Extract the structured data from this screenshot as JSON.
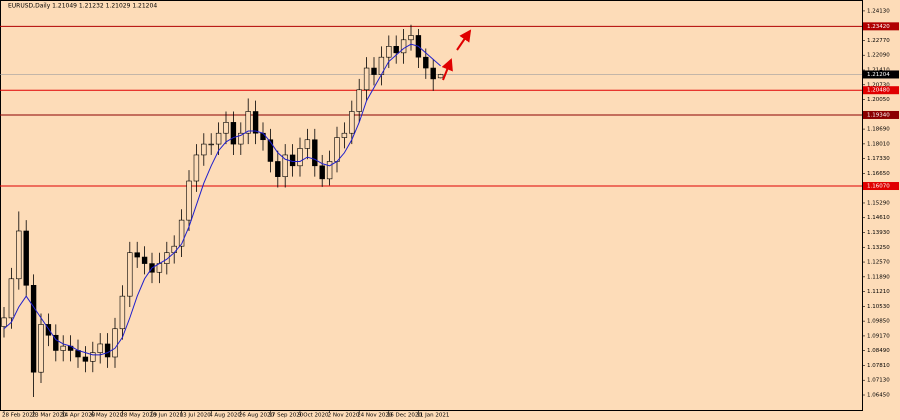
{
  "chart_data": {
    "type": "candlestick",
    "title": "EURUSD,Daily  1.21049 1.21232 1.21029 1.21204",
    "categories": [
      "28 Feb 2020",
      null,
      null,
      null,
      "23 Mar 2020",
      null,
      null,
      null,
      "14 Apr 2020",
      null,
      null,
      null,
      "6 May 2020",
      null,
      null,
      null,
      "28 May 2020",
      null,
      null,
      null,
      "19 Jun 2020",
      null,
      null,
      null,
      "13 Jul 2020",
      null,
      null,
      null,
      "4 Aug 2020",
      null,
      null,
      null,
      "26 Aug 2020",
      null,
      null,
      null,
      "17 Sep 2020",
      null,
      null,
      null,
      "9 Oct 2020",
      null,
      null,
      null,
      "2 Nov 2020",
      null,
      null,
      null,
      "24 Nov 2020",
      null,
      null,
      null,
      "16 Dec 2020",
      null,
      null,
      null,
      "11 Jan 2021",
      null,
      null,
      null
    ],
    "open": [
      1.096,
      1.1,
      1.118,
      1.14,
      1.115,
      1.075,
      1.097,
      1.092,
      1.085,
      1.087,
      1.085,
      1.082,
      1.08,
      1.084,
      1.088,
      1.082,
      1.095,
      1.11,
      1.13,
      1.128,
      1.125,
      1.121,
      1.125,
      1.13,
      1.133,
      1.145,
      1.163,
      1.175,
      1.18,
      1.18,
      1.185,
      1.19,
      1.18,
      1.185,
      1.195,
      1.185,
      1.182,
      1.172,
      1.165,
      1.175,
      1.17,
      1.178,
      1.182,
      1.17,
      1.164,
      1.172,
      1.183,
      1.185,
      1.195,
      1.205,
      1.215,
      1.212,
      1.22,
      1.225,
      1.222,
      1.228,
      1.23,
      1.22,
      1.215,
      1.21049
    ],
    "high": [
      1.105,
      1.123,
      1.149,
      1.145,
      1.12,
      1.102,
      1.102,
      1.097,
      1.092,
      1.092,
      1.09,
      1.087,
      1.089,
      1.093,
      1.093,
      1.1,
      1.115,
      1.135,
      1.135,
      1.133,
      1.13,
      1.13,
      1.135,
      1.138,
      1.15,
      1.168,
      1.18,
      1.185,
      1.185,
      1.19,
      1.195,
      1.195,
      1.19,
      1.201,
      1.2,
      1.19,
      1.187,
      1.177,
      1.18,
      1.18,
      1.183,
      1.187,
      1.187,
      1.175,
      1.177,
      1.188,
      1.19,
      1.2,
      1.21,
      1.22,
      1.22,
      1.225,
      1.23,
      1.23,
      1.233,
      1.2349,
      1.233,
      1.224,
      1.219,
      1.21232
    ],
    "low": [
      1.091,
      1.095,
      1.113,
      1.11,
      1.0636,
      1.07,
      1.087,
      1.08,
      1.08,
      1.08,
      1.077,
      1.075,
      1.075,
      1.079,
      1.077,
      1.077,
      1.09,
      1.105,
      1.123,
      1.12,
      1.116,
      1.116,
      1.12,
      1.125,
      1.128,
      1.14,
      1.158,
      1.17,
      1.175,
      1.175,
      1.18,
      1.175,
      1.175,
      1.18,
      1.18,
      1.177,
      1.167,
      1.16,
      1.16,
      1.165,
      1.165,
      1.173,
      1.165,
      1.1603,
      1.161,
      1.167,
      1.178,
      1.18,
      1.19,
      1.2,
      1.207,
      1.207,
      1.215,
      1.217,
      1.217,
      1.223,
      1.215,
      1.21,
      1.2045,
      1.21029
    ],
    "close": [
      1.1,
      1.118,
      1.14,
      1.115,
      1.075,
      1.097,
      1.092,
      1.085,
      1.087,
      1.085,
      1.082,
      1.08,
      1.084,
      1.088,
      1.082,
      1.095,
      1.11,
      1.13,
      1.128,
      1.125,
      1.121,
      1.125,
      1.13,
      1.133,
      1.145,
      1.163,
      1.175,
      1.18,
      1.18,
      1.185,
      1.19,
      1.18,
      1.185,
      1.195,
      1.185,
      1.182,
      1.172,
      1.165,
      1.175,
      1.17,
      1.178,
      1.182,
      1.17,
      1.164,
      1.172,
      1.183,
      1.185,
      1.195,
      1.205,
      1.215,
      1.212,
      1.22,
      1.225,
      1.222,
      1.228,
      1.23,
      1.22,
      1.215,
      1.21,
      1.21204
    ],
    "candle_color": "#000000",
    "moving_average": {
      "color": "#1f1fcc",
      "values": [
        1.095,
        1.098,
        1.105,
        1.11,
        1.105,
        1.1,
        1.095,
        1.09,
        1.088,
        1.087,
        1.085,
        1.084,
        1.083,
        1.083,
        1.084,
        1.086,
        1.091,
        1.1,
        1.11,
        1.118,
        1.123,
        1.125,
        1.127,
        1.13,
        1.134,
        1.142,
        1.152,
        1.162,
        1.17,
        1.177,
        1.181,
        1.183,
        1.184,
        1.186,
        1.186,
        1.185,
        1.181,
        1.176,
        1.173,
        1.172,
        1.172,
        1.174,
        1.173,
        1.171,
        1.17,
        1.172,
        1.176,
        1.182,
        1.19,
        1.2,
        1.206,
        1.212,
        1.218,
        1.221,
        1.224,
        1.226,
        1.225,
        1.222,
        1.219,
        1.216
      ]
    },
    "levels": [
      {
        "value": 1.2342,
        "label": "1.23420",
        "color": "#b00000"
      },
      {
        "value": 1.2048,
        "label": "1.20480",
        "color": "#e00000"
      },
      {
        "value": 1.1934,
        "label": "1.19340",
        "color": "#8b0000"
      },
      {
        "value": 1.1607,
        "label": "1.16070",
        "color": "#e00000"
      }
    ],
    "price_line": {
      "value": 1.21204,
      "label": "1.21204",
      "color": "#a0a0a0"
    },
    "ylim": [
      1.0576,
      1.2454
    ],
    "yticks": [
      {
        "value": 1.0645,
        "label": "1.06450"
      },
      {
        "value": 1.0713,
        "label": "1.07130"
      },
      {
        "value": 1.0781,
        "label": "1.07810"
      },
      {
        "value": 1.0849,
        "label": "1.08490"
      },
      {
        "value": 1.0917,
        "label": "1.09170"
      },
      {
        "value": 1.0985,
        "label": "1.09850"
      },
      {
        "value": 1.1053,
        "label": "1.10530"
      },
      {
        "value": 1.1121,
        "label": "1.11210"
      },
      {
        "value": 1.1189,
        "label": "1.11890"
      },
      {
        "value": 1.1257,
        "label": "1.12570"
      },
      {
        "value": 1.1325,
        "label": "1.13250"
      },
      {
        "value": 1.1393,
        "label": "1.13930"
      },
      {
        "value": 1.1461,
        "label": "1.14610"
      },
      {
        "value": 1.1529,
        "label": "1.15290"
      },
      {
        "value": 1.1597,
        "label": "1.15970"
      },
      {
        "value": 1.1665,
        "label": "1.16650"
      },
      {
        "value": 1.1733,
        "label": "1.17330"
      },
      {
        "value": 1.1801,
        "label": "1.18010"
      },
      {
        "value": 1.1869,
        "label": "1.18690"
      },
      {
        "value": 1.1937,
        "label": "1.19370"
      },
      {
        "value": 1.2005,
        "label": "1.20050"
      },
      {
        "value": 1.2073,
        "label": "1.20730"
      },
      {
        "value": 1.2141,
        "label": "1.21410"
      },
      {
        "value": 1.2209,
        "label": "1.22090"
      },
      {
        "value": 1.2277,
        "label": "1.22770"
      },
      {
        "value": 1.2345,
        "label": "1.23450"
      },
      {
        "value": 1.2413,
        "label": "1.24130"
      }
    ],
    "background": "#fddcb8"
  }
}
